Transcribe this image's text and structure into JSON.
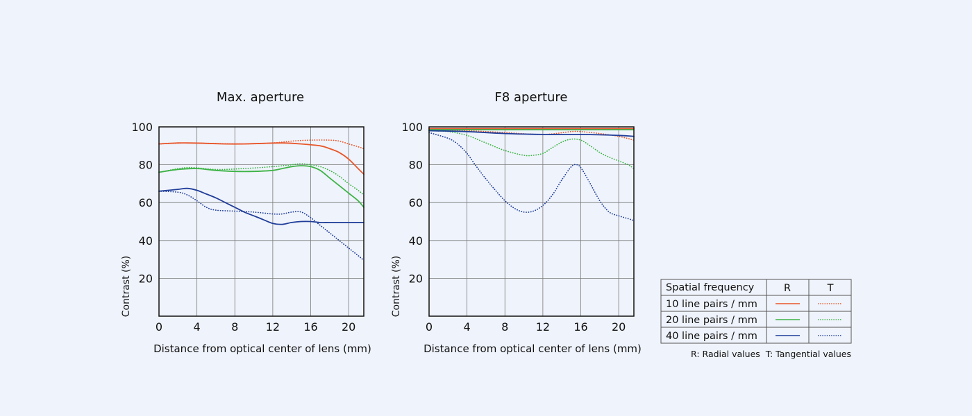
{
  "chart_data": [
    {
      "type": "line",
      "title": "Max. aperture",
      "xlabel": "Distance from optical center of lens (mm)",
      "ylabel": "Contrast (%)",
      "xlim": [
        0,
        21.6
      ],
      "ylim": [
        0,
        100
      ],
      "x_ticks": [
        "0",
        "4",
        "8",
        "12",
        "16",
        "20"
      ],
      "y_ticks": [
        "20",
        "40",
        "60",
        "80",
        "100"
      ],
      "grid": true,
      "series": [
        {
          "freq": "10 line pairs / mm",
          "type": "R",
          "color": "#e8562a",
          "dash": "solid",
          "points": [
            [
              0,
              91
            ],
            [
              2,
              91.5
            ],
            [
              3,
              91.5
            ],
            [
              5,
              91.3
            ],
            [
              7,
              91
            ],
            [
              9,
              91
            ],
            [
              11,
              91.3
            ],
            [
              13,
              91.5
            ],
            [
              15,
              91
            ],
            [
              17,
              90
            ],
            [
              18,
              88.5
            ],
            [
              19,
              86.5
            ],
            [
              20,
              83
            ],
            [
              21,
              78
            ],
            [
              21.6,
              75
            ]
          ]
        },
        {
          "freq": "10 line pairs / mm",
          "type": "T",
          "color": "#e8562a",
          "dash": "dotted",
          "points": [
            [
              0,
              91
            ],
            [
              3,
              91.5
            ],
            [
              6,
              91.2
            ],
            [
              9,
              91
            ],
            [
              12,
              91.5
            ],
            [
              14,
              92.5
            ],
            [
              16,
              93
            ],
            [
              18,
              93
            ],
            [
              19,
              92.5
            ],
            [
              20,
              91
            ],
            [
              21,
              89.5
            ],
            [
              21.6,
              88.5
            ]
          ]
        },
        {
          "freq": "20 line pairs / mm",
          "type": "R",
          "color": "#3db346",
          "dash": "solid",
          "points": [
            [
              0,
              76
            ],
            [
              2,
              77.5
            ],
            [
              4,
              78
            ],
            [
              6,
              77
            ],
            [
              8,
              76.5
            ],
            [
              10,
              76.5
            ],
            [
              12,
              77
            ],
            [
              13,
              78
            ],
            [
              14,
              79
            ],
            [
              15,
              79.5
            ],
            [
              16,
              79
            ],
            [
              17,
              77
            ],
            [
              18,
              73
            ],
            [
              19,
              69
            ],
            [
              20,
              65
            ],
            [
              21,
              61
            ],
            [
              21.6,
              57.5
            ]
          ]
        },
        {
          "freq": "20 line pairs / mm",
          "type": "T",
          "color": "#3db346",
          "dash": "dotted",
          "points": [
            [
              0,
              76
            ],
            [
              3,
              78.5
            ],
            [
              6,
              77.5
            ],
            [
              9,
              78
            ],
            [
              12,
              79
            ],
            [
              14,
              80
            ],
            [
              15,
              80.5
            ],
            [
              16,
              80
            ],
            [
              17,
              79
            ],
            [
              18,
              77
            ],
            [
              19,
              74
            ],
            [
              20,
              70
            ],
            [
              21,
              66.5
            ],
            [
              21.6,
              64
            ]
          ]
        },
        {
          "freq": "40 line pairs / mm",
          "type": "R",
          "color": "#1f3d99",
          "dash": "solid",
          "points": [
            [
              0,
              66
            ],
            [
              2,
              67
            ],
            [
              3,
              67.5
            ],
            [
              4,
              66.5
            ],
            [
              5,
              64.5
            ],
            [
              6,
              62.5
            ],
            [
              7,
              60
            ],
            [
              8,
              57.5
            ],
            [
              9,
              55
            ],
            [
              10,
              53
            ],
            [
              11,
              51
            ],
            [
              12,
              49
            ],
            [
              13,
              48.5
            ],
            [
              14,
              49.5
            ],
            [
              15,
              50
            ],
            [
              16,
              50
            ],
            [
              17,
              49.5
            ],
            [
              18,
              49.5
            ],
            [
              20,
              49.5
            ],
            [
              21.6,
              49.5
            ]
          ]
        },
        {
          "freq": "40 line pairs / mm",
          "type": "T",
          "color": "#1f3d99",
          "dash": "dotted",
          "points": [
            [
              0,
              66
            ],
            [
              2,
              65.5
            ],
            [
              3,
              64
            ],
            [
              4,
              61
            ],
            [
              5,
              57.5
            ],
            [
              6,
              56
            ],
            [
              8,
              55.5
            ],
            [
              10,
              55
            ],
            [
              12,
              54
            ],
            [
              13,
              54
            ],
            [
              14,
              55
            ],
            [
              15,
              55
            ],
            [
              16,
              52
            ],
            [
              17,
              48
            ],
            [
              18,
              44
            ],
            [
              19,
              40
            ],
            [
              20,
              36
            ],
            [
              21,
              32
            ],
            [
              21.6,
              29.5
            ]
          ]
        }
      ]
    },
    {
      "type": "line",
      "title": "F8 aperture",
      "xlabel": "Distance from optical center of lens (mm)",
      "ylabel": "Contrast (%)",
      "xlim": [
        0,
        21.6
      ],
      "ylim": [
        0,
        100
      ],
      "x_ticks": [
        "0",
        "4",
        "8",
        "12",
        "16",
        "20"
      ],
      "y_ticks": [
        "20",
        "40",
        "60",
        "80",
        "100"
      ],
      "grid": true,
      "series": [
        {
          "freq": "10 line pairs / mm",
          "type": "R",
          "color": "#e8562a",
          "dash": "solid",
          "points": [
            [
              0,
              99
            ],
            [
              5,
              99
            ],
            [
              10,
              99
            ],
            [
              15,
              99
            ],
            [
              21.6,
              99
            ]
          ]
        },
        {
          "freq": "10 line pairs / mm",
          "type": "T",
          "color": "#e8562a",
          "dash": "dotted",
          "points": [
            [
              0,
              98.5
            ],
            [
              4,
              98
            ],
            [
              8,
              97
            ],
            [
              12,
              96
            ],
            [
              15,
              97.5
            ],
            [
              16,
              97.5
            ],
            [
              18,
              96.5
            ],
            [
              20,
              95
            ],
            [
              21.6,
              93
            ]
          ]
        },
        {
          "freq": "20 line pairs / mm",
          "type": "R",
          "color": "#3db346",
          "dash": "solid",
          "points": [
            [
              0,
              98.5
            ],
            [
              5,
              98.5
            ],
            [
              10,
              98.5
            ],
            [
              15,
              98.5
            ],
            [
              21.6,
              98.5
            ]
          ]
        },
        {
          "freq": "20 line pairs / mm",
          "type": "T",
          "color": "#3db346",
          "dash": "dotted",
          "points": [
            [
              0,
              98
            ],
            [
              2,
              97.5
            ],
            [
              4,
              95.5
            ],
            [
              6,
              91.5
            ],
            [
              8,
              87.5
            ],
            [
              10,
              85
            ],
            [
              11,
              85
            ],
            [
              12,
              86
            ],
            [
              13,
              89
            ],
            [
              14,
              92
            ],
            [
              15,
              93.5
            ],
            [
              16,
              93
            ],
            [
              17,
              90
            ],
            [
              18,
              86.5
            ],
            [
              19,
              84
            ],
            [
              20,
              82
            ],
            [
              21,
              80
            ],
            [
              21.6,
              78
            ]
          ]
        },
        {
          "freq": "40 line pairs / mm",
          "type": "R",
          "color": "#1f3d99",
          "dash": "solid",
          "points": [
            [
              0,
              98
            ],
            [
              4,
              97.5
            ],
            [
              8,
              96.5
            ],
            [
              12,
              96
            ],
            [
              16,
              96
            ],
            [
              20,
              95.5
            ],
            [
              21.6,
              95
            ]
          ]
        },
        {
          "freq": "40 line pairs / mm",
          "type": "T",
          "color": "#1f3d99",
          "dash": "dotted",
          "points": [
            [
              0,
              97
            ],
            [
              2,
              94
            ],
            [
              3,
              91
            ],
            [
              4,
              86
            ],
            [
              5,
              79
            ],
            [
              6,
              72.5
            ],
            [
              7,
              66.5
            ],
            [
              8,
              61
            ],
            [
              9,
              57
            ],
            [
              10,
              55
            ],
            [
              11,
              55.5
            ],
            [
              12,
              58.5
            ],
            [
              13,
              64
            ],
            [
              14,
              72
            ],
            [
              15,
              79
            ],
            [
              15.5,
              80
            ],
            [
              16,
              78.5
            ],
            [
              17,
              70
            ],
            [
              18,
              61
            ],
            [
              19,
              55
            ],
            [
              20,
              53
            ],
            [
              21,
              51.5
            ],
            [
              21.6,
              50.5
            ]
          ]
        }
      ]
    }
  ],
  "legend": {
    "header": "Spatial frequency",
    "col_r": "R",
    "col_t": "T",
    "rows": [
      {
        "label": "10 line pairs / mm",
        "color": "#e8562a"
      },
      {
        "label": "20 line pairs / mm",
        "color": "#3db346"
      },
      {
        "label": "40 line pairs / mm",
        "color": "#1f3d99"
      }
    ],
    "footnote": "R: Radial values  T: Tangential values"
  }
}
